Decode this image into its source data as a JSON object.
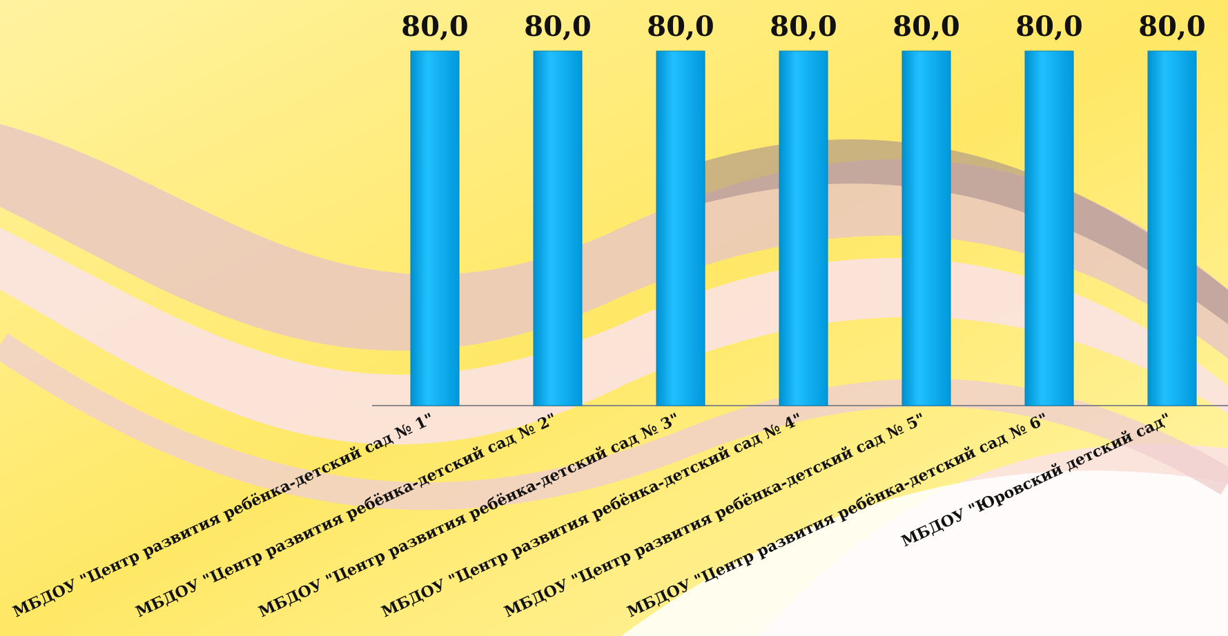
{
  "chart_data": {
    "type": "bar",
    "categories": [
      "МБДОУ \"Центр развития ребёнка-детский сад № 1\"",
      "МБДОУ \"Центр развития ребёнка-детский сад № 2\"",
      "МБДОУ \"Центр развития ребёнка-детский сад № 3\"",
      "МБДОУ \"Центр развития ребёнка-детский сад № 4\"",
      "МБДОУ \"Центр развития ребёнка-детский сад № 5\"",
      "МБДОУ \"Центр развития ребёнка-детский сад № 6\"",
      "МБДОУ \"Юровский детский сад\""
    ],
    "values": [
      80,
      80,
      80,
      80,
      80,
      80,
      80
    ],
    "value_labels": [
      "80,0",
      "80,0",
      "80,0",
      "80,0",
      "80,0",
      "80,0",
      "80,0"
    ],
    "color": "#00b0f0"
  }
}
